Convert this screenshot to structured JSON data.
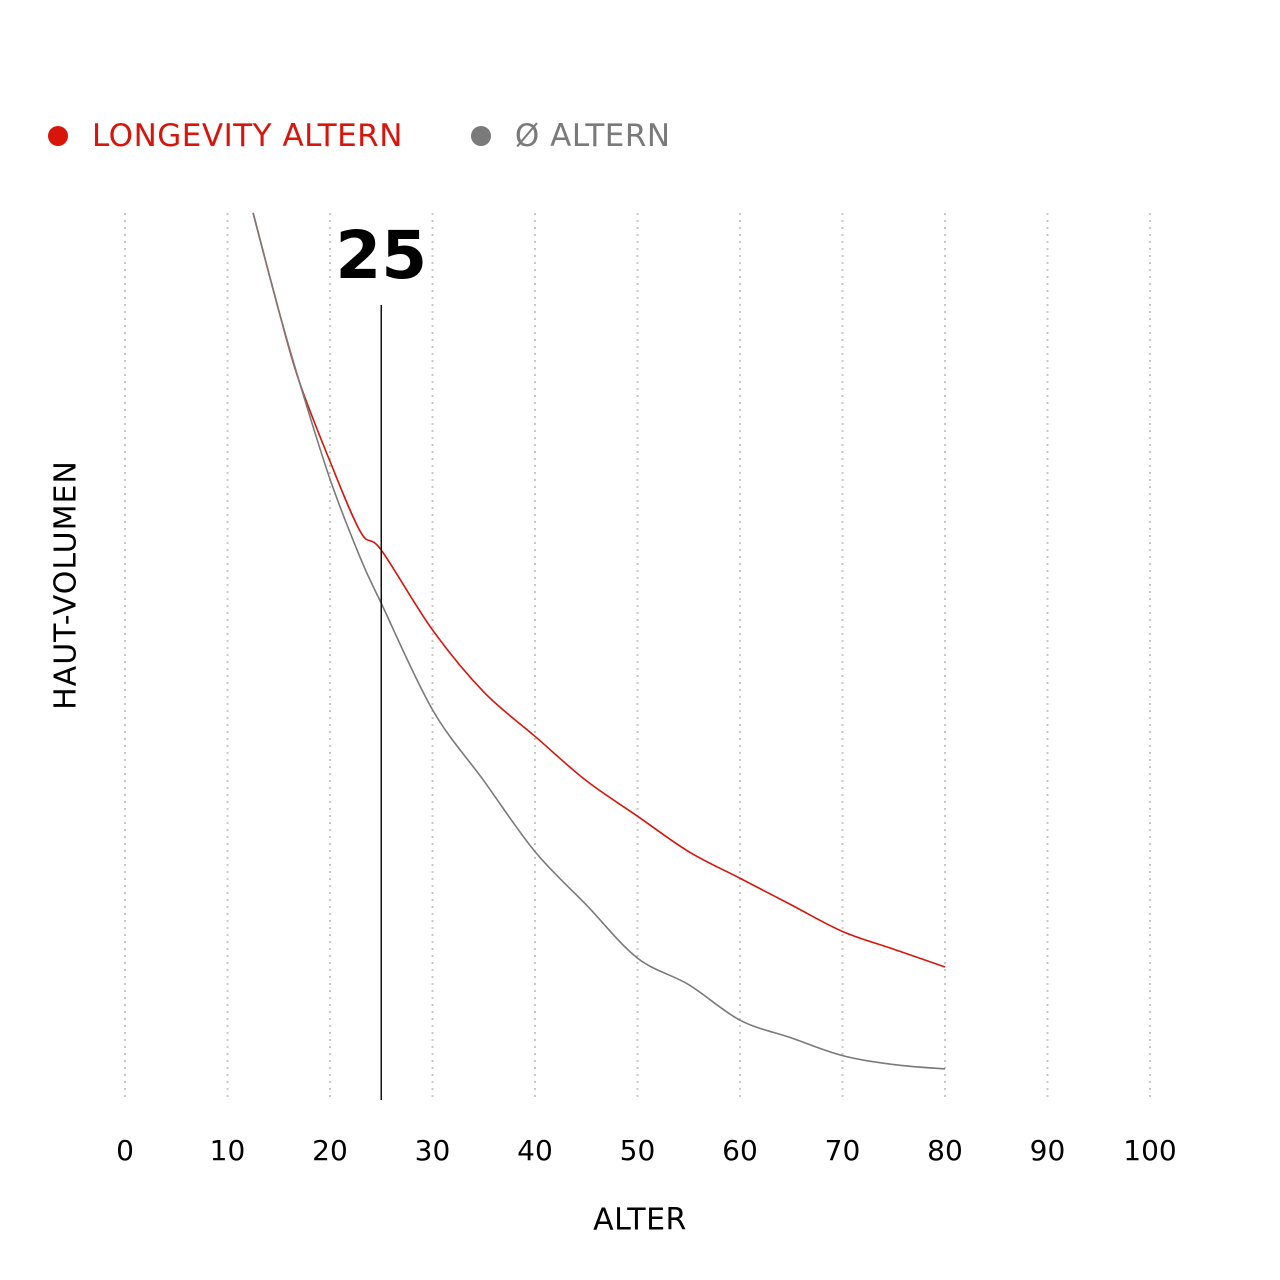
{
  "chart_data": {
    "type": "line",
    "xlabel": "ALTER",
    "ylabel": "HAUT-VOLUMEN",
    "xlim": [
      0,
      100
    ],
    "xticks": [
      0,
      10,
      20,
      30,
      40,
      50,
      60,
      70,
      80,
      90,
      100
    ],
    "ylim": [
      0,
      100
    ],
    "grid": "vertical-dotted",
    "legend": "top-left",
    "marker": {
      "x": 25,
      "label": "25"
    },
    "series": [
      {
        "name": "LONGEVITY ALTERN",
        "color": "#d7150b",
        "x": [
          12.5,
          15,
          17,
          20,
          23,
          25,
          30,
          35,
          40,
          45,
          50,
          55,
          60,
          65,
          70,
          75,
          80
        ],
        "y": [
          100,
          89,
          81,
          72,
          64,
          62,
          53,
          46,
          41,
          36,
          32,
          28,
          25,
          22,
          19,
          17,
          15
        ]
      },
      {
        "name": "Ø ALTERN",
        "color": "#7a7a7a",
        "x": [
          12.5,
          15,
          17,
          20,
          23,
          25,
          30,
          35,
          40,
          45,
          50,
          55,
          60,
          65,
          70,
          75,
          80
        ],
        "y": [
          100,
          89,
          81,
          70,
          61,
          56,
          44,
          36,
          28,
          22,
          16,
          13,
          9,
          7,
          5,
          4,
          3.5
        ]
      }
    ]
  }
}
